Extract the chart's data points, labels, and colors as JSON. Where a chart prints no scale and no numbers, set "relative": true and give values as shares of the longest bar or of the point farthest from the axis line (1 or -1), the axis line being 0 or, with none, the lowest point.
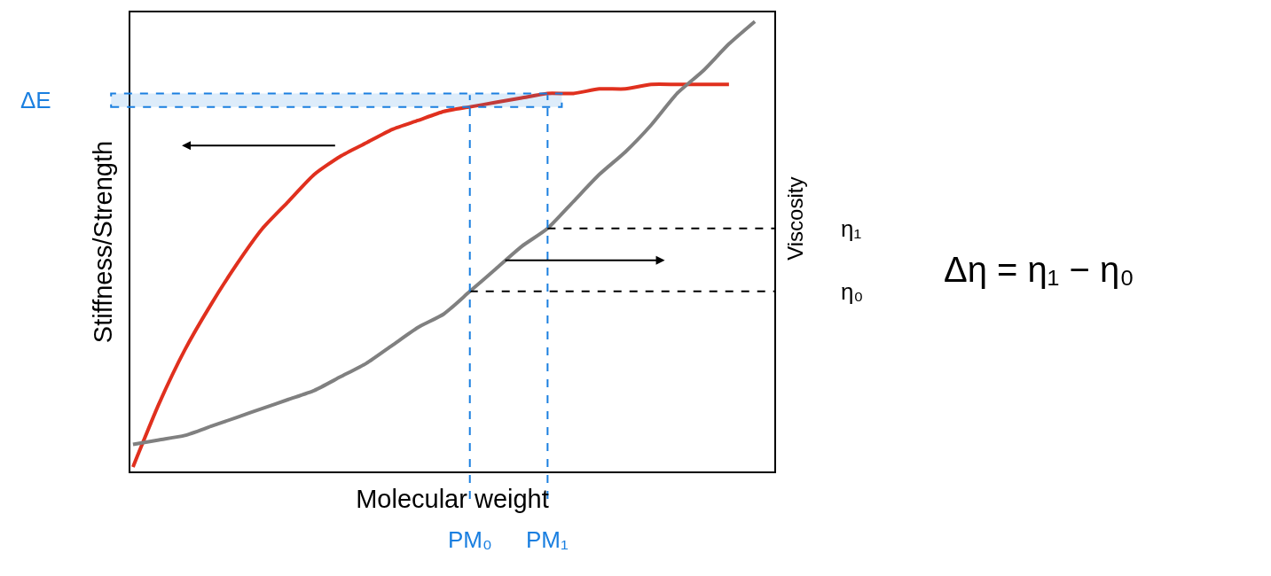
{
  "chart_data": {
    "type": "line",
    "relative": true,
    "xlabel": "Molecular weight",
    "ylabel": "Stiffness/Strength",
    "y2label": "Viscosity",
    "categories": [
      null,
      null,
      null,
      null,
      null,
      null,
      null,
      null,
      null,
      null,
      null,
      null,
      null,
      null,
      null,
      null,
      null,
      null,
      null,
      null,
      null,
      null,
      null,
      null,
      null
    ],
    "series": [
      {
        "color": "#e0301e",
        "values": [
          0.01,
          0.15,
          0.27,
          0.37,
          0.46,
          0.54,
          0.6,
          0.66,
          0.7,
          0.73,
          0.76,
          0.78,
          0.8,
          0.81,
          0.82,
          0.83,
          0.84,
          0.84,
          0.85,
          0.85,
          0.86,
          0.86,
          0.86,
          0.86,
          null
        ]
      },
      {
        "color": "#808080",
        "values": [
          0.06,
          0.07,
          0.08,
          0.1,
          0.12,
          0.14,
          0.16,
          0.18,
          0.21,
          0.24,
          0.28,
          0.32,
          0.35,
          0.4,
          0.45,
          0.5,
          0.54,
          0.6,
          0.66,
          0.71,
          0.77,
          0.84,
          0.89,
          0.95,
          1
        ]
      }
    ],
    "ref_lines": [
      {
        "axis": "y",
        "value": 0.4,
        "label": "η₀",
        "color": "#000000",
        "line_style": "dashed"
      },
      {
        "axis": "y",
        "value": 0.54,
        "label": "η₁",
        "color": "#000000",
        "line_style": "dashed"
      }
    ],
    "bands": [
      {
        "axis": "y",
        "from": 0.81,
        "to": 0.84,
        "label": "ΔE",
        "color": "#1a7fe0"
      }
    ],
    "annotations": [
      "PM₀",
      "PM₁",
      "Δη = η₁ − η₀"
    ],
    "tick_labels": false,
    "line_style": "solid",
    "marker": "none"
  }
}
